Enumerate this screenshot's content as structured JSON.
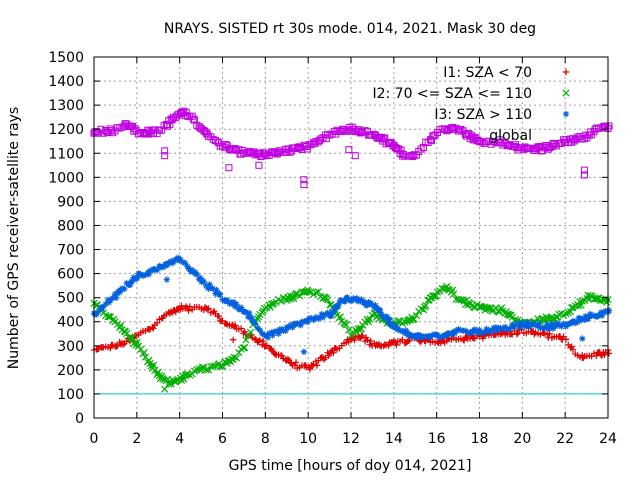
{
  "chart_data": {
    "type": "scatter",
    "title": "NRAYS. SISTED rt 30s mode. 014, 2021. Mask 30 deg",
    "xlabel": "GPS time [hours of doy 014, 2021]",
    "ylabel": "Number of GPS receiver-satellite rays",
    "xlim": [
      0,
      24
    ],
    "ylim": [
      0,
      1500
    ],
    "xticks": [
      0,
      2,
      4,
      6,
      8,
      10,
      12,
      14,
      16,
      18,
      20,
      22,
      24
    ],
    "yticks": [
      0,
      100,
      200,
      300,
      400,
      500,
      600,
      700,
      800,
      900,
      1000,
      1100,
      1200,
      1300,
      1400,
      1500
    ],
    "grid": true,
    "legend_position": "top-right",
    "reference_line": {
      "y": 100,
      "color": "#00c8d8"
    },
    "series": [
      {
        "name": "I1: SZA < 70",
        "marker": "+",
        "color": "#e00000",
        "points": [
          [
            0,
            280
          ],
          [
            1,
            300
          ],
          [
            2,
            340
          ],
          [
            3,
            400
          ],
          [
            3.5,
            440
          ],
          [
            4,
            455
          ],
          [
            5,
            455
          ],
          [
            5.5,
            445
          ],
          [
            6,
            400
          ],
          [
            7,
            360
          ],
          [
            8,
            300
          ],
          [
            9,
            240
          ],
          [
            9.5,
            215
          ],
          [
            10,
            205
          ],
          [
            11,
            270
          ],
          [
            12,
            330
          ],
          [
            12.5,
            340
          ],
          [
            13,
            300
          ],
          [
            14,
            310
          ],
          [
            15,
            330
          ],
          [
            16,
            320
          ],
          [
            17,
            330
          ],
          [
            18,
            340
          ],
          [
            19,
            350
          ],
          [
            20,
            360
          ],
          [
            21,
            345
          ],
          [
            22,
            335
          ],
          [
            22.5,
            255
          ],
          [
            23,
            255
          ],
          [
            24,
            275
          ]
        ]
      },
      {
        "name": "I2: 70 <= SZA <= 110",
        "marker": "x",
        "color": "#00b000",
        "points": [
          [
            0,
            470
          ],
          [
            1,
            400
          ],
          [
            2,
            300
          ],
          [
            3,
            175
          ],
          [
            3.5,
            145
          ],
          [
            4,
            165
          ],
          [
            5,
            200
          ],
          [
            6,
            220
          ],
          [
            6.5,
            240
          ],
          [
            7,
            300
          ],
          [
            7.5,
            400
          ],
          [
            8,
            460
          ],
          [
            9,
            500
          ],
          [
            10,
            525
          ],
          [
            10.5,
            520
          ],
          [
            11,
            480
          ],
          [
            12,
            350
          ],
          [
            12.5,
            380
          ],
          [
            13,
            430
          ],
          [
            14,
            390
          ],
          [
            15,
            420
          ],
          [
            16,
            520
          ],
          [
            16.5,
            540
          ],
          [
            17,
            490
          ],
          [
            18,
            460
          ],
          [
            19,
            450
          ],
          [
            20,
            390
          ],
          [
            21,
            410
          ],
          [
            22,
            430
          ],
          [
            23,
            500
          ],
          [
            24,
            490
          ]
        ]
      },
      {
        "name": "I3: SZA > 110",
        "marker": "*",
        "color": "#0060e0",
        "points": [
          [
            0,
            430
          ],
          [
            1,
            510
          ],
          [
            2,
            590
          ],
          [
            3,
            620
          ],
          [
            3.5,
            650
          ],
          [
            4,
            660
          ],
          [
            5,
            570
          ],
          [
            6,
            500
          ],
          [
            7,
            450
          ],
          [
            8,
            340
          ],
          [
            9,
            370
          ],
          [
            10,
            410
          ],
          [
            11,
            430
          ],
          [
            11.5,
            490
          ],
          [
            12,
            495
          ],
          [
            13,
            470
          ],
          [
            14,
            380
          ],
          [
            15,
            335
          ],
          [
            16,
            340
          ],
          [
            17,
            360
          ],
          [
            18,
            360
          ],
          [
            19,
            370
          ],
          [
            20,
            390
          ],
          [
            21,
            380
          ],
          [
            22,
            385
          ],
          [
            23,
            420
          ],
          [
            24,
            440
          ]
        ]
      },
      {
        "name": "global",
        "marker": "square",
        "color": "#c000e0",
        "points": [
          [
            0,
            1190
          ],
          [
            1,
            1195
          ],
          [
            1.5,
            1220
          ],
          [
            2,
            1185
          ],
          [
            3,
            1190
          ],
          [
            3.5,
            1230
          ],
          [
            4,
            1270
          ],
          [
            4.5,
            1260
          ],
          [
            5,
            1200
          ],
          [
            6,
            1130
          ],
          [
            7,
            1100
          ],
          [
            8,
            1095
          ],
          [
            9,
            1110
          ],
          [
            10,
            1130
          ],
          [
            11,
            1180
          ],
          [
            12,
            1200
          ],
          [
            13,
            1180
          ],
          [
            14,
            1130
          ],
          [
            14.5,
            1085
          ],
          [
            15,
            1090
          ],
          [
            16,
            1190
          ],
          [
            16.5,
            1200
          ],
          [
            17,
            1200
          ],
          [
            18,
            1145
          ],
          [
            19,
            1145
          ],
          [
            20,
            1115
          ],
          [
            21,
            1120
          ],
          [
            22,
            1150
          ],
          [
            23,
            1170
          ],
          [
            23.5,
            1200
          ],
          [
            24,
            1210
          ]
        ]
      }
    ],
    "outliers": [
      {
        "series": "I1: SZA < 70",
        "points": [
          [
            6.5,
            325
          ],
          [
            22.8,
            250
          ]
        ]
      },
      {
        "series": "I2: 70 <= SZA <= 110",
        "points": [
          [
            3.3,
            120
          ]
        ]
      },
      {
        "series": "I3: SZA > 110",
        "points": [
          [
            3.4,
            575
          ],
          [
            9.8,
            275
          ],
          [
            22.8,
            330
          ]
        ]
      },
      {
        "series": "global",
        "points": [
          [
            3.3,
            1090
          ],
          [
            3.3,
            1110
          ],
          [
            6.3,
            1040
          ],
          [
            7.7,
            1050
          ],
          [
            9.8,
            970
          ],
          [
            9.8,
            990
          ],
          [
            11.9,
            1115
          ],
          [
            12.2,
            1090
          ],
          [
            22.9,
            1010
          ],
          [
            22.9,
            1030
          ]
        ]
      }
    ]
  }
}
